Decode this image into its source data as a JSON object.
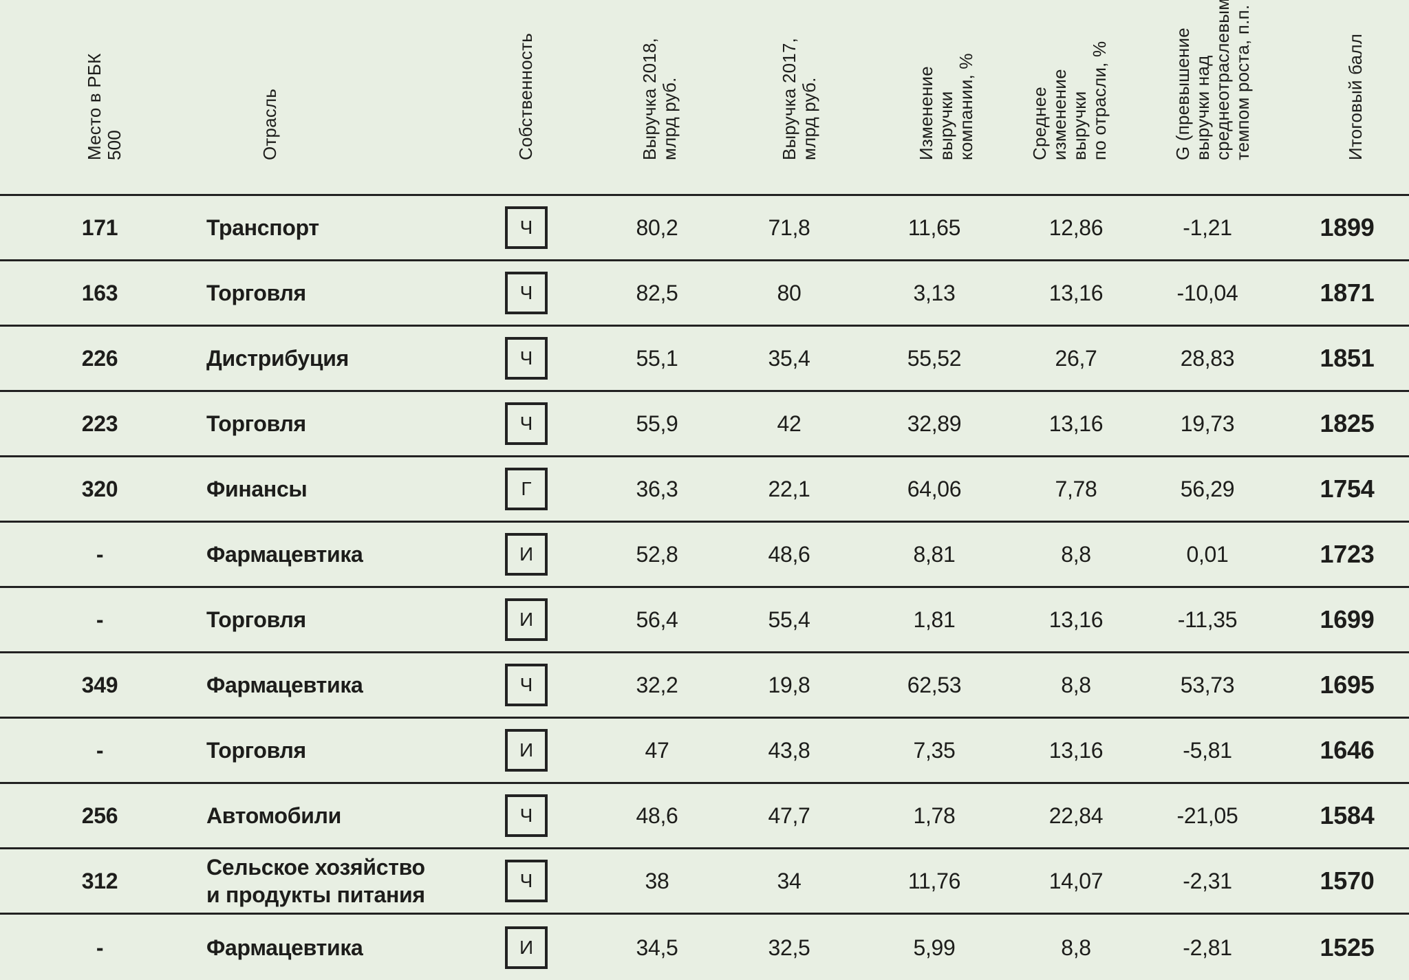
{
  "colors": {
    "background": "#e8efe3",
    "text": "#1d1d1b",
    "line": "#222222"
  },
  "columns": {
    "rank": {
      "label": "Место в РБК\n500"
    },
    "industry": {
      "label": "Отрасль"
    },
    "ownership": {
      "label": "Собственность"
    },
    "rev2018": {
      "label": "Выручка 2018,\nмлрд руб."
    },
    "rev2017": {
      "label": "Выручка 2017,\nмлрд руб."
    },
    "change": {
      "label": "Изменение\nвыручки\nкомпании, %"
    },
    "avg": {
      "label": "Среднее\nизменение\nвыручки\nпо отрасли, %"
    },
    "g": {
      "label": "G (превышение\nвыручки над\nсреднеотраслевым\nтемпом роста, п.п."
    },
    "score": {
      "label": "Итоговый балл"
    }
  },
  "rows": [
    {
      "rank": "171",
      "industry": "Транспорт",
      "ownership": "Ч",
      "rev2018": "80,2",
      "rev2017": "71,8",
      "change": "11,65",
      "avg": "12,86",
      "g": "-1,21",
      "score": "1899"
    },
    {
      "rank": "163",
      "industry": "Торговля",
      "ownership": "Ч",
      "rev2018": "82,5",
      "rev2017": "80",
      "change": "3,13",
      "avg": "13,16",
      "g": "-10,04",
      "score": "1871"
    },
    {
      "rank": "226",
      "industry": "Дистрибуция",
      "ownership": "Ч",
      "rev2018": "55,1",
      "rev2017": "35,4",
      "change": "55,52",
      "avg": "26,7",
      "g": "28,83",
      "score": "1851"
    },
    {
      "rank": "223",
      "industry": "Торговля",
      "ownership": "Ч",
      "rev2018": "55,9",
      "rev2017": "42",
      "change": "32,89",
      "avg": "13,16",
      "g": "19,73",
      "score": "1825"
    },
    {
      "rank": "320",
      "industry": "Финансы",
      "ownership": "Г",
      "rev2018": "36,3",
      "rev2017": "22,1",
      "change": "64,06",
      "avg": "7,78",
      "g": "56,29",
      "score": "1754"
    },
    {
      "rank": "-",
      "industry": "Фармацевтика",
      "ownership": "И",
      "rev2018": "52,8",
      "rev2017": "48,6",
      "change": "8,81",
      "avg": "8,8",
      "g": "0,01",
      "score": "1723"
    },
    {
      "rank": "-",
      "industry": "Торговля",
      "ownership": "И",
      "rev2018": "56,4",
      "rev2017": "55,4",
      "change": "1,81",
      "avg": "13,16",
      "g": "-11,35",
      "score": "1699"
    },
    {
      "rank": "349",
      "industry": "Фармацевтика",
      "ownership": "Ч",
      "rev2018": "32,2",
      "rev2017": "19,8",
      "change": "62,53",
      "avg": "8,8",
      "g": "53,73",
      "score": "1695"
    },
    {
      "rank": "-",
      "industry": "Торговля",
      "ownership": "И",
      "rev2018": "47",
      "rev2017": "43,8",
      "change": "7,35",
      "avg": "13,16",
      "g": "-5,81",
      "score": "1646"
    },
    {
      "rank": "256",
      "industry": "Автомобили",
      "ownership": "Ч",
      "rev2018": "48,6",
      "rev2017": "47,7",
      "change": "1,78",
      "avg": "22,84",
      "g": "-21,05",
      "score": "1584"
    },
    {
      "rank": "312",
      "industry": "Сельское хозяйство\nи продукты питания",
      "ownership": "Ч",
      "rev2018": "38",
      "rev2017": "34",
      "change": "11,76",
      "avg": "14,07",
      "g": "-2,31",
      "score": "1570"
    },
    {
      "rank": "-",
      "industry": "Фармацевтика",
      "ownership": "И",
      "rev2018": "34,5",
      "rev2017": "32,5",
      "change": "5,99",
      "avg": "8,8",
      "g": "-2,81",
      "score": "1525"
    }
  ]
}
